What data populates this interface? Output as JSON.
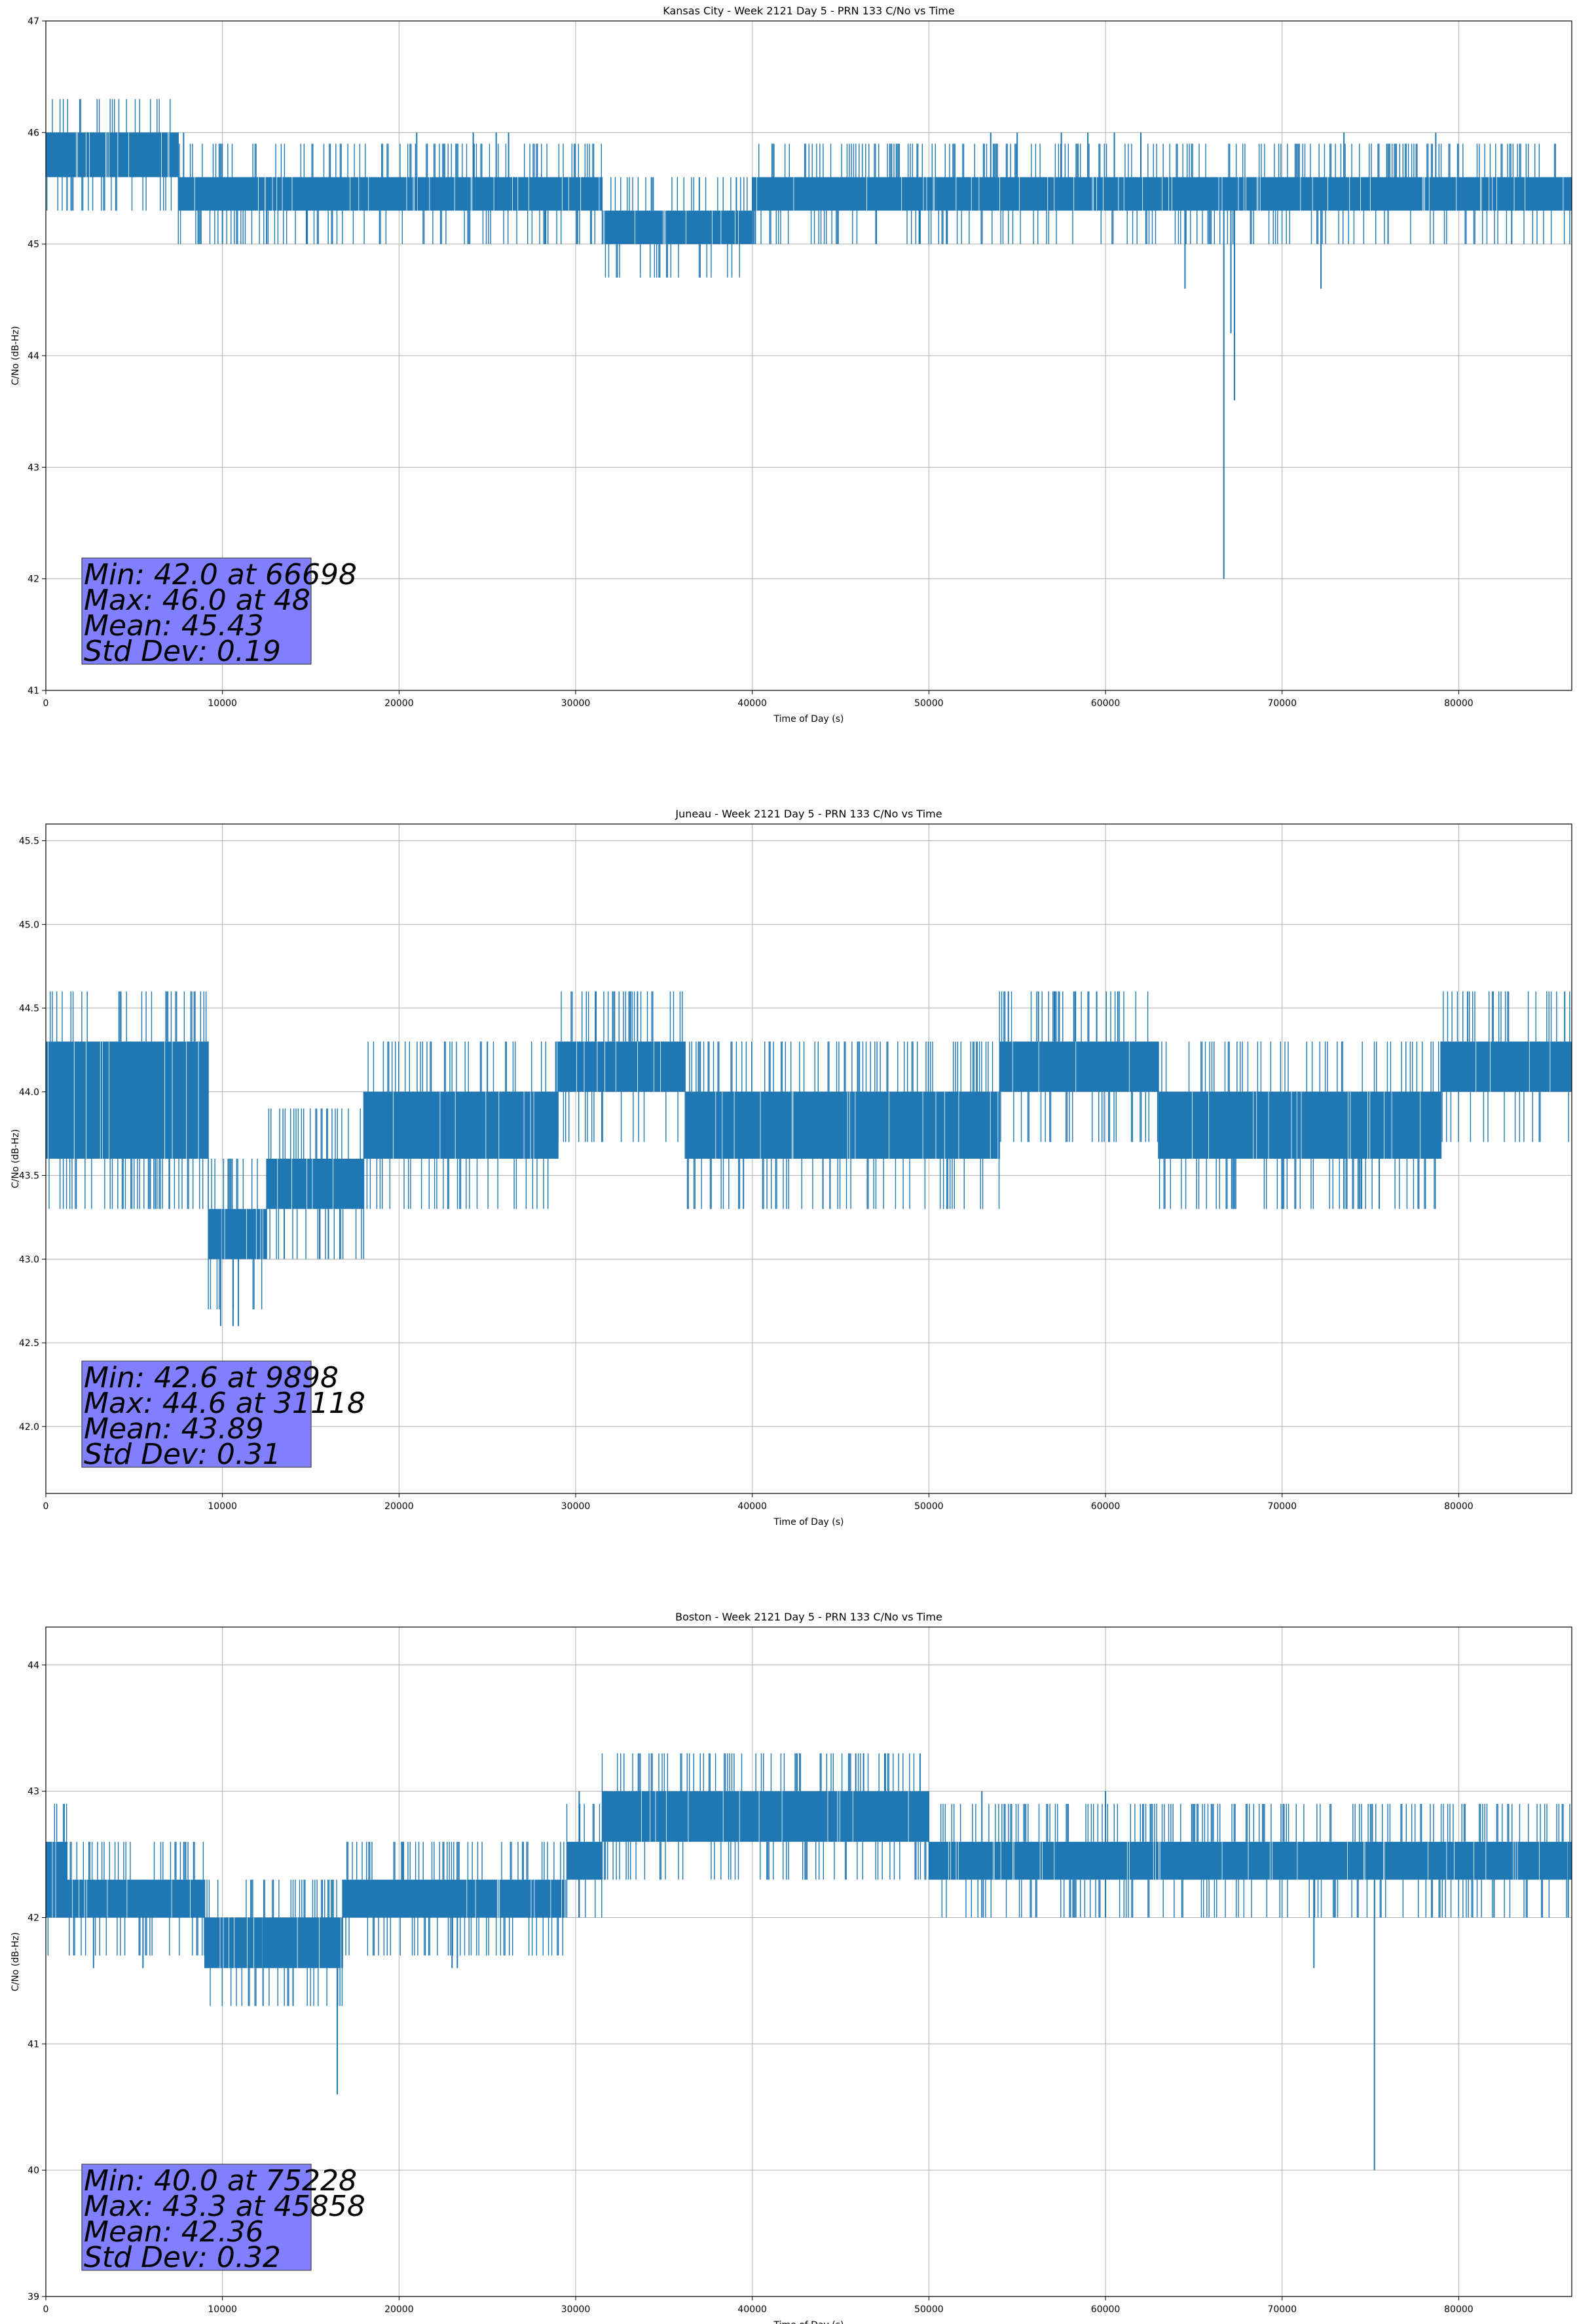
{
  "chart_data": [
    {
      "type": "line",
      "title": "Kansas City - Week 2121 Day 5 - PRN 133 C/No vs Time",
      "xlabel": "Time of Day (s)",
      "ylabel": "C/No (dB-Hz)",
      "xlim": [
        0,
        86400
      ],
      "ylim": [
        41,
        47
      ],
      "xticks": [
        0,
        10000,
        20000,
        30000,
        40000,
        50000,
        60000,
        70000,
        80000
      ],
      "xtick_labels": [
        "0",
        "10000",
        "20000",
        "30000",
        "40000",
        "50000",
        "60000",
        "70000",
        "80000"
      ],
      "yticks": [
        41,
        42,
        43,
        44,
        45,
        46,
        47
      ],
      "ytick_labels": [
        "41",
        "42",
        "43",
        "44",
        "45",
        "46",
        "47"
      ],
      "grid": true,
      "series_color": "#1f77b4",
      "series_name": "C/No",
      "band_segments": [
        {
          "x0": 0,
          "x1": 7500,
          "low": 45.6,
          "high": 46.0
        },
        {
          "x0": 7500,
          "x1": 9500,
          "low": 45.3,
          "high": 45.6
        },
        {
          "x0": 9500,
          "x1": 15000,
          "low": 45.3,
          "high": 45.6
        },
        {
          "x0": 15000,
          "x1": 28000,
          "low": 45.3,
          "high": 45.6
        },
        {
          "x0": 28000,
          "x1": 31500,
          "low": 45.3,
          "high": 45.6
        },
        {
          "x0": 31500,
          "x1": 40000,
          "low": 45.0,
          "high": 45.3
        },
        {
          "x0": 40000,
          "x1": 86400,
          "low": 45.3,
          "high": 45.6
        }
      ],
      "spikes": [
        {
          "x": 1200,
          "low": 45.3,
          "high": 46.0
        },
        {
          "x": 7800,
          "low": 45.6,
          "high": 46.0
        },
        {
          "x": 10000,
          "low": 45.0,
          "high": 45.6
        },
        {
          "x": 12500,
          "low": 45.0,
          "high": 45.6
        },
        {
          "x": 14800,
          "low": 45.0,
          "high": 45.6
        },
        {
          "x": 21000,
          "low": 45.3,
          "high": 46.0
        },
        {
          "x": 24200,
          "low": 45.3,
          "high": 46.0
        },
        {
          "x": 25500,
          "low": 45.3,
          "high": 46.0
        },
        {
          "x": 26200,
          "low": 45.3,
          "high": 46.0
        },
        {
          "x": 28300,
          "low": 45.0,
          "high": 45.6
        },
        {
          "x": 30100,
          "low": 45.0,
          "high": 45.6
        },
        {
          "x": 37000,
          "low": 45.0,
          "high": 45.6
        },
        {
          "x": 39100,
          "low": 45.0,
          "high": 45.6
        },
        {
          "x": 47000,
          "low": 45.0,
          "high": 45.6
        },
        {
          "x": 49500,
          "low": 45.0,
          "high": 45.6
        },
        {
          "x": 51000,
          "low": 45.0,
          "high": 45.6
        },
        {
          "x": 53500,
          "low": 45.3,
          "high": 46.0
        },
        {
          "x": 55000,
          "low": 45.3,
          "high": 46.0
        },
        {
          "x": 57500,
          "low": 45.3,
          "high": 46.0
        },
        {
          "x": 59000,
          "low": 45.3,
          "high": 46.0
        },
        {
          "x": 60500,
          "low": 45.3,
          "high": 46.0
        },
        {
          "x": 62000,
          "low": 45.3,
          "high": 46.0
        },
        {
          "x": 64500,
          "low": 44.6,
          "high": 45.6
        },
        {
          "x": 66698,
          "low": 42.0,
          "high": 45.6
        },
        {
          "x": 67300,
          "low": 43.6,
          "high": 45.6
        },
        {
          "x": 67100,
          "low": 44.2,
          "high": 45.6
        },
        {
          "x": 72200,
          "low": 44.6,
          "high": 45.6
        },
        {
          "x": 73500,
          "low": 45.3,
          "high": 46.0
        },
        {
          "x": 76000,
          "low": 45.0,
          "high": 45.6
        },
        {
          "x": 78700,
          "low": 45.3,
          "high": 46.0
        },
        {
          "x": 83000,
          "low": 45.0,
          "high": 45.6
        }
      ],
      "stats_box": [
        "Min: 42.0 at 66698",
        "Max: 46.0 at 48",
        "Mean: 45.43",
        "Std Dev: 0.19"
      ],
      "stats_box_color": "#8080ff",
      "stats_box_placement": "bottom-left"
    },
    {
      "type": "line",
      "title": "Juneau - Week 2121 Day 5 - PRN 133 C/No vs Time",
      "xlabel": "Time of Day (s)",
      "ylabel": "C/No (dB-Hz)",
      "xlim": [
        0,
        86400
      ],
      "ylim": [
        41.6,
        45.6
      ],
      "xticks": [
        0,
        10000,
        20000,
        30000,
        40000,
        50000,
        60000,
        70000,
        80000
      ],
      "xtick_labels": [
        "0",
        "10000",
        "20000",
        "30000",
        "40000",
        "50000",
        "60000",
        "70000",
        "80000"
      ],
      "yticks": [
        42.0,
        42.5,
        43.0,
        43.5,
        44.0,
        44.5,
        45.0,
        45.5
      ],
      "ytick_labels": [
        "42.0",
        "42.5",
        "43.0",
        "43.5",
        "44.0",
        "44.5",
        "45.0",
        "45.5"
      ],
      "grid": true,
      "series_color": "#1f77b4",
      "series_name": "C/No",
      "band_segments": [
        {
          "x0": 0,
          "x1": 9200,
          "low": 43.6,
          "high": 44.3
        },
        {
          "x0": 9200,
          "x1": 12500,
          "low": 43.0,
          "high": 43.3
        },
        {
          "x0": 12500,
          "x1": 18000,
          "low": 43.3,
          "high": 43.6
        },
        {
          "x0": 18000,
          "x1": 29000,
          "low": 43.6,
          "high": 44.0
        },
        {
          "x0": 29000,
          "x1": 36200,
          "low": 44.0,
          "high": 44.3
        },
        {
          "x0": 36200,
          "x1": 54000,
          "low": 43.6,
          "high": 44.0
        },
        {
          "x0": 54000,
          "x1": 63000,
          "low": 44.0,
          "high": 44.3
        },
        {
          "x0": 63000,
          "x1": 79000,
          "low": 43.6,
          "high": 44.0
        },
        {
          "x0": 79000,
          "x1": 86400,
          "low": 44.0,
          "high": 44.3
        }
      ],
      "spikes": [
        {
          "x": 6200,
          "low": 43.3,
          "high": 43.6
        },
        {
          "x": 7000,
          "low": 43.3,
          "high": 43.6
        },
        {
          "x": 9898,
          "low": 42.6,
          "high": 43.3
        },
        {
          "x": 10600,
          "low": 42.6,
          "high": 43.3
        },
        {
          "x": 10900,
          "low": 42.6,
          "high": 43.3
        },
        {
          "x": 13500,
          "low": 43.0,
          "high": 43.3
        },
        {
          "x": 15500,
          "low": 43.0,
          "high": 43.3
        },
        {
          "x": 16000,
          "low": 43.0,
          "high": 43.6
        },
        {
          "x": 25000,
          "low": 44.0,
          "high": 44.3
        },
        {
          "x": 31118,
          "low": 44.3,
          "high": 44.6
        },
        {
          "x": 33100,
          "low": 44.3,
          "high": 44.6
        },
        {
          "x": 33500,
          "low": 44.3,
          "high": 44.6
        },
        {
          "x": 39500,
          "low": 43.3,
          "high": 43.6
        },
        {
          "x": 44000,
          "low": 43.3,
          "high": 43.6
        },
        {
          "x": 44400,
          "low": 43.3,
          "high": 43.6
        },
        {
          "x": 54500,
          "low": 44.3,
          "high": 44.6
        },
        {
          "x": 56200,
          "low": 44.3,
          "high": 44.6
        },
        {
          "x": 57100,
          "low": 44.3,
          "high": 44.6
        },
        {
          "x": 58300,
          "low": 44.3,
          "high": 44.6
        },
        {
          "x": 59500,
          "low": 44.3,
          "high": 44.6
        },
        {
          "x": 60700,
          "low": 44.3,
          "high": 44.6
        },
        {
          "x": 73500,
          "low": 43.3,
          "high": 43.6
        },
        {
          "x": 74500,
          "low": 43.3,
          "high": 43.6
        },
        {
          "x": 75500,
          "low": 43.3,
          "high": 43.6
        },
        {
          "x": 80500,
          "low": 44.3,
          "high": 44.6
        },
        {
          "x": 86000,
          "low": 44.3,
          "high": 44.6
        }
      ],
      "stats_box": [
        "Min: 42.6 at 9898",
        "Max: 44.6 at 31118",
        "Mean: 43.89",
        "Std Dev: 0.31"
      ],
      "stats_box_color": "#8080ff",
      "stats_box_placement": "bottom-left"
    },
    {
      "type": "line",
      "title": "Boston - Week 2121 Day 5 - PRN 133 C/No vs Time",
      "xlabel": "Time of Day (s)",
      "ylabel": "C/No (dB-Hz)",
      "xlim": [
        0,
        86400
      ],
      "ylim": [
        39,
        44.3
      ],
      "xticks": [
        0,
        10000,
        20000,
        30000,
        40000,
        50000,
        60000,
        70000,
        80000
      ],
      "xtick_labels": [
        "0",
        "10000",
        "20000",
        "30000",
        "40000",
        "50000",
        "60000",
        "70000",
        "80000"
      ],
      "yticks": [
        39,
        40,
        41,
        42,
        43,
        44
      ],
      "ytick_labels": [
        "39",
        "40",
        "41",
        "42",
        "43",
        "44"
      ],
      "grid": true,
      "series_color": "#1f77b4",
      "series_name": "C/No",
      "band_segments": [
        {
          "x0": 0,
          "x1": 1200,
          "low": 42.0,
          "high": 42.6
        },
        {
          "x0": 1200,
          "x1": 9000,
          "low": 42.0,
          "high": 42.3
        },
        {
          "x0": 9000,
          "x1": 16800,
          "low": 41.6,
          "high": 42.0
        },
        {
          "x0": 16800,
          "x1": 29500,
          "low": 42.0,
          "high": 42.3
        },
        {
          "x0": 29500,
          "x1": 31500,
          "low": 42.3,
          "high": 42.6
        },
        {
          "x0": 31500,
          "x1": 50000,
          "low": 42.6,
          "high": 43.0
        },
        {
          "x0": 50000,
          "x1": 86400,
          "low": 42.3,
          "high": 42.6
        }
      ],
      "spikes": [
        {
          "x": 2700,
          "low": 41.6,
          "high": 42.3
        },
        {
          "x": 5500,
          "low": 41.6,
          "high": 42.3
        },
        {
          "x": 12300,
          "low": 41.3,
          "high": 42.0
        },
        {
          "x": 14000,
          "low": 41.3,
          "high": 42.0
        },
        {
          "x": 16500,
          "low": 40.6,
          "high": 42.0
        },
        {
          "x": 20200,
          "low": 42.0,
          "high": 42.6
        },
        {
          "x": 23000,
          "low": 41.6,
          "high": 42.3
        },
        {
          "x": 23300,
          "low": 41.6,
          "high": 42.3
        },
        {
          "x": 30200,
          "low": 42.0,
          "high": 43.0
        },
        {
          "x": 45858,
          "low": 42.6,
          "high": 43.3
        },
        {
          "x": 46300,
          "low": 42.6,
          "high": 43.3
        },
        {
          "x": 47500,
          "low": 42.6,
          "high": 43.3
        },
        {
          "x": 49500,
          "low": 42.6,
          "high": 43.3
        },
        {
          "x": 53000,
          "low": 42.0,
          "high": 43.0
        },
        {
          "x": 60000,
          "low": 42.0,
          "high": 43.0
        },
        {
          "x": 71800,
          "low": 41.6,
          "high": 42.6
        },
        {
          "x": 75228,
          "low": 40.0,
          "high": 42.6
        },
        {
          "x": 82000,
          "low": 42.0,
          "high": 42.6
        },
        {
          "x": 86200,
          "low": 42.0,
          "high": 42.6
        }
      ],
      "stats_box": [
        "Min: 40.0 at 75228",
        "Max: 43.3 at 45858",
        "Mean: 42.36",
        "Std Dev: 0.32"
      ],
      "stats_box_color": "#8080ff",
      "stats_box_placement": "bottom-left"
    }
  ]
}
